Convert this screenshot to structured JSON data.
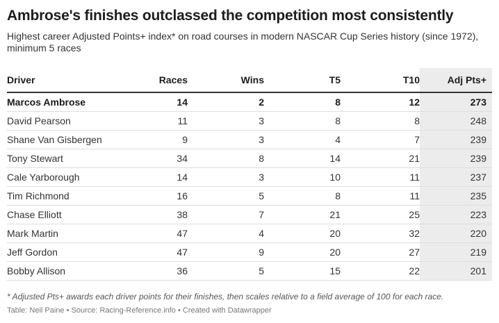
{
  "title": "Ambrose's finishes outclassed the competition most consistently",
  "subtitle": "Highest career Adjusted Points+ index* on road courses in modern NASCAR Cup Series history (since 1972), minimum 5 races",
  "chart_data": {
    "type": "table",
    "columns": [
      "Driver",
      "Races",
      "Wins",
      "T5",
      "T10",
      "Adj Pts+"
    ],
    "rows": [
      [
        "Marcos Ambrose",
        "14",
        "2",
        "8",
        "12",
        "273"
      ],
      [
        "David Pearson",
        "11",
        "3",
        "8",
        "8",
        "248"
      ],
      [
        "Shane Van Gisbergen",
        "9",
        "3",
        "4",
        "7",
        "239"
      ],
      [
        "Tony Stewart",
        "34",
        "8",
        "14",
        "21",
        "239"
      ],
      [
        "Cale Yarborough",
        "14",
        "3",
        "10",
        "11",
        "237"
      ],
      [
        "Tim Richmond",
        "16",
        "5",
        "8",
        "11",
        "235"
      ],
      [
        "Chase Elliott",
        "38",
        "7",
        "21",
        "25",
        "223"
      ],
      [
        "Mark Martin",
        "47",
        "4",
        "20",
        "32",
        "220"
      ],
      [
        "Jeff Gordon",
        "47",
        "9",
        "20",
        "27",
        "219"
      ],
      [
        "Bobby Allison",
        "36",
        "5",
        "15",
        "22",
        "201"
      ]
    ],
    "highlighted_row": 0,
    "highlighted_column_color": "#ececec"
  },
  "footnote": "* Adjusted Pts+ awards each driver points for their finishes, then scales relative to a field average of 100 for each race.",
  "source": "Table: Neil Paine • Source: Racing-Reference.info • Created with Datawrapper"
}
